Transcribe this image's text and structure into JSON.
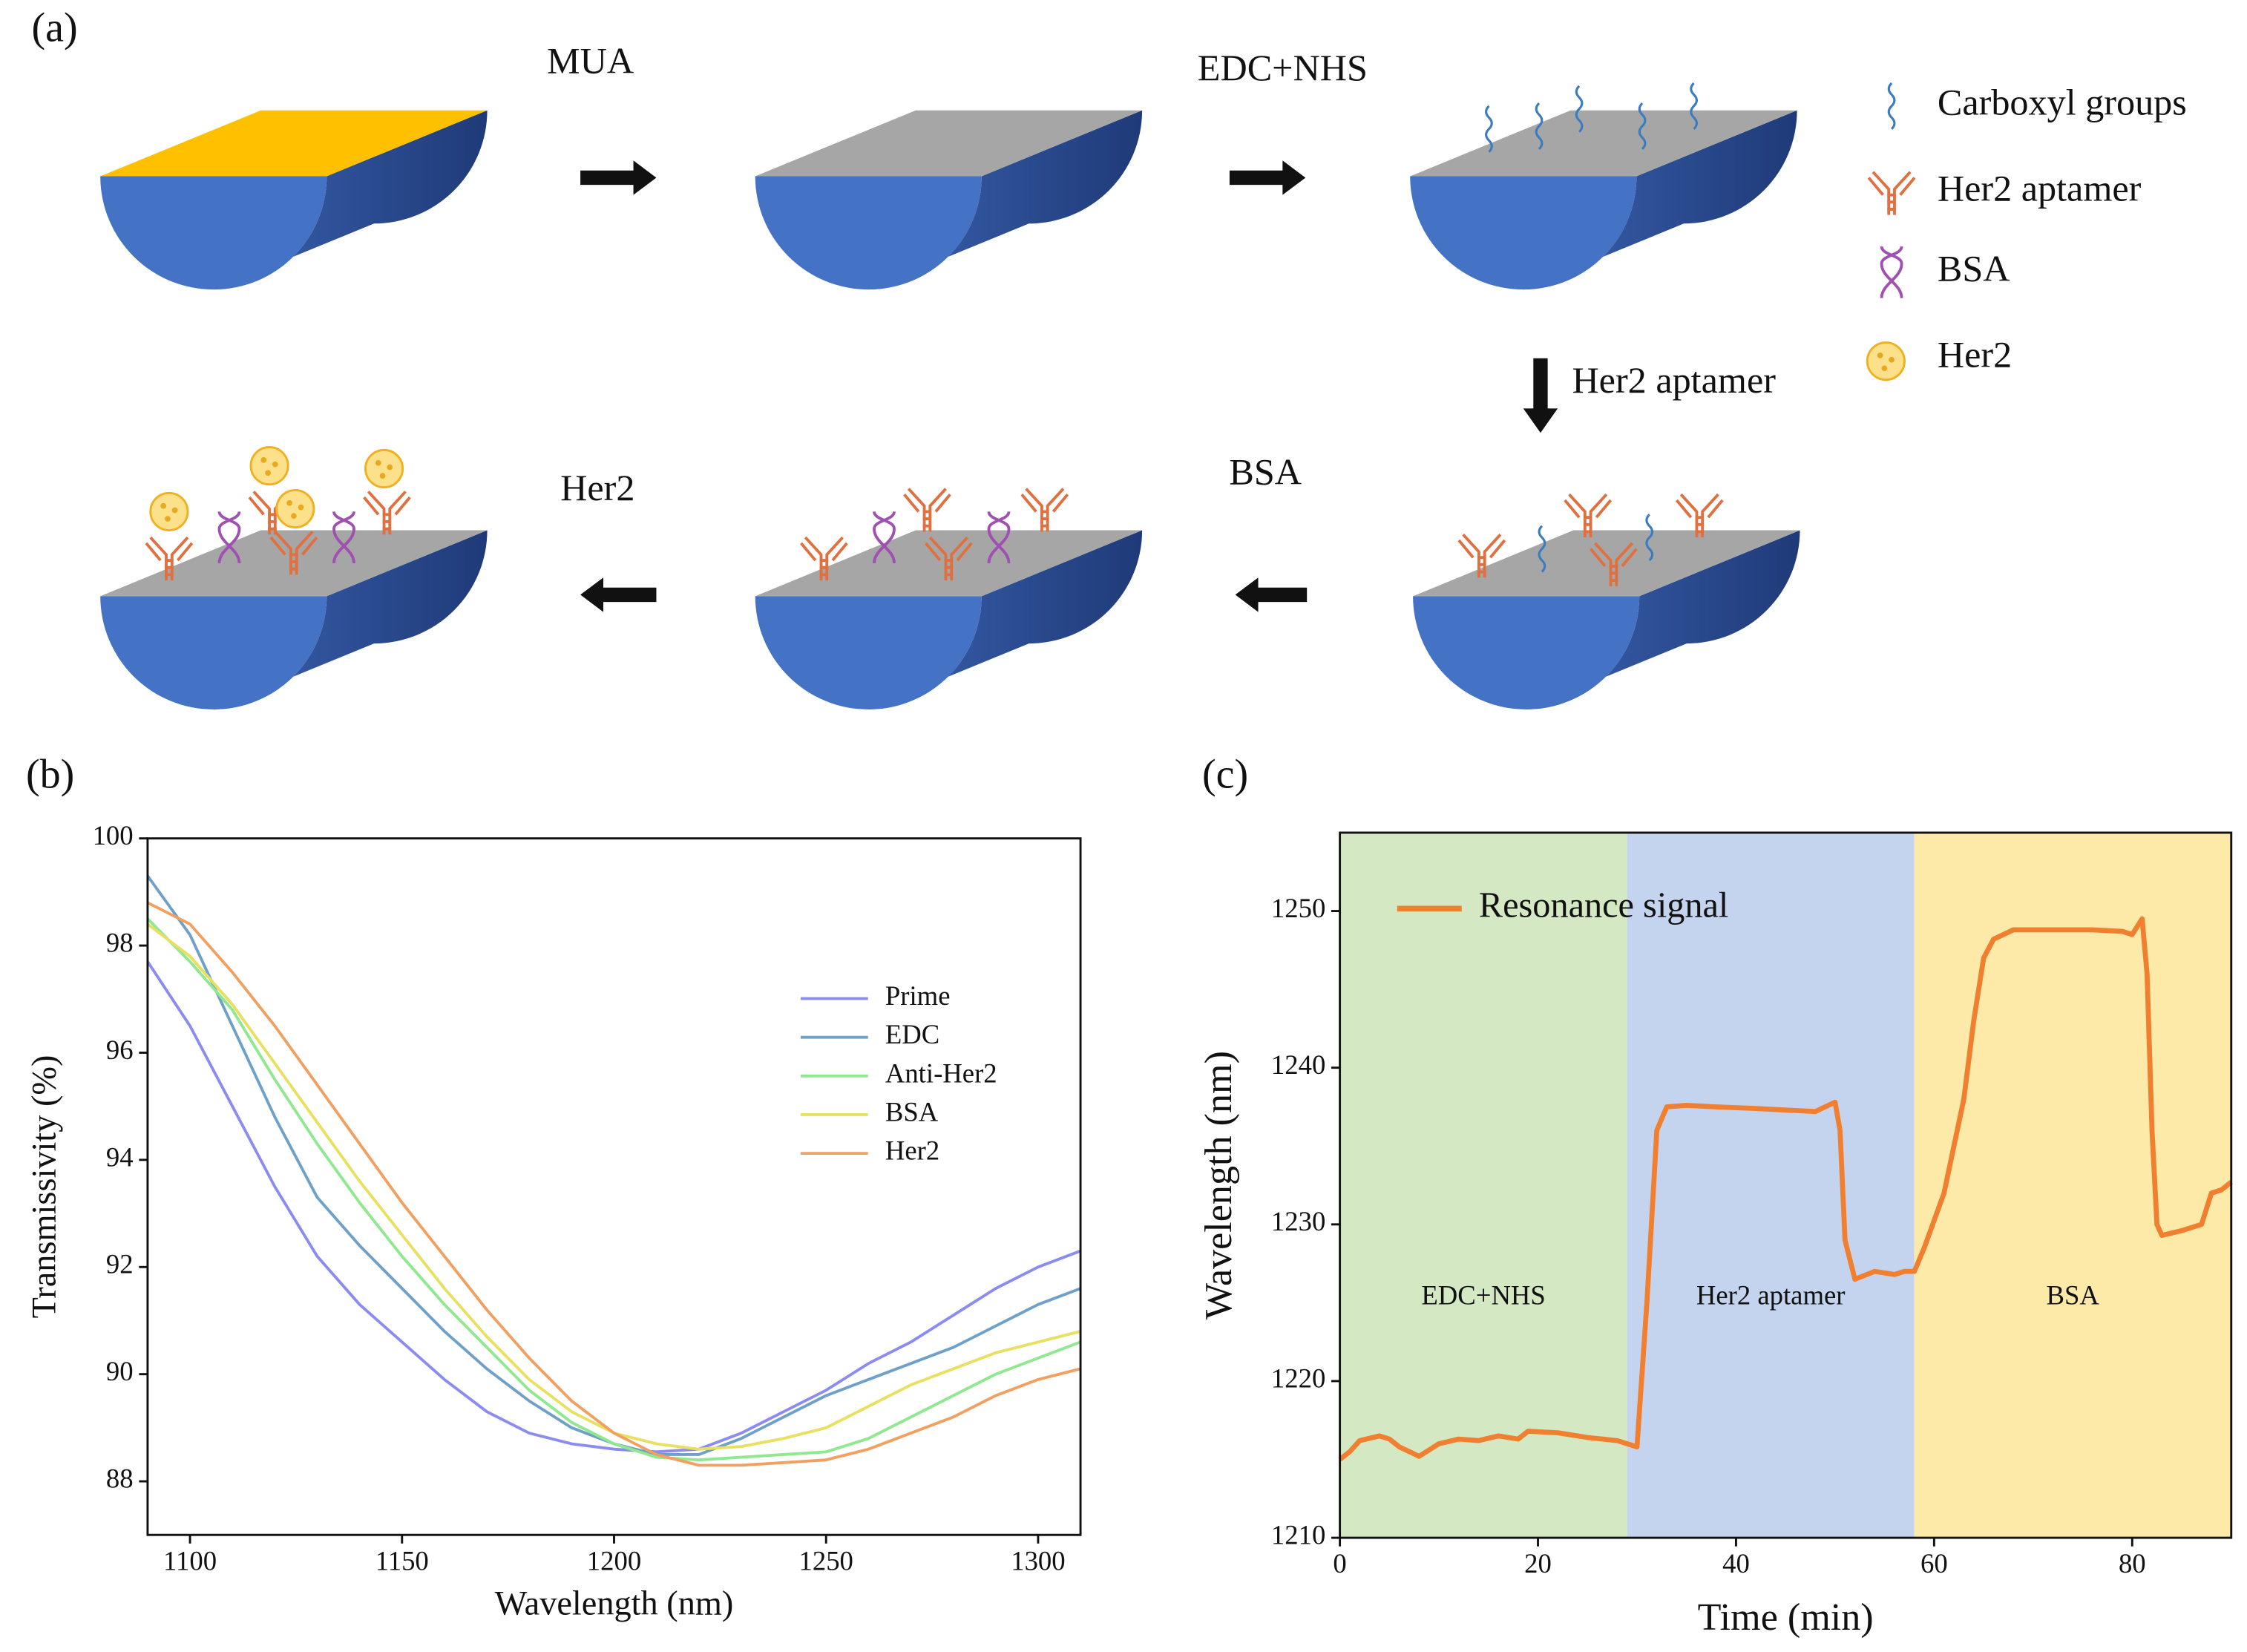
{
  "diagram": {
    "panel_label": "(a)",
    "steps": [
      "MUA",
      "EDC+NHS",
      "Her2 aptamer",
      "BSA",
      "Her2"
    ],
    "legend": [
      "Carboxyl groups",
      "Her2 aptamer",
      "BSA",
      "Her2"
    ]
  },
  "chart_data": [
    {
      "type": "line",
      "panel_label": "(b)",
      "xlabel": "Wavelength (nm)",
      "ylabel": "Transmissivity (%)",
      "x": [
        1090,
        1100,
        1110,
        1120,
        1130,
        1140,
        1150,
        1160,
        1170,
        1180,
        1190,
        1200,
        1210,
        1220,
        1230,
        1240,
        1250,
        1260,
        1270,
        1280,
        1290,
        1300,
        1310
      ],
      "series": [
        {
          "name": "Prime",
          "color": "#8c8cf0",
          "values": [
            97.7,
            96.5,
            95.0,
            93.5,
            92.2,
            91.3,
            90.6,
            89.9,
            89.3,
            88.9,
            88.7,
            88.6,
            88.55,
            88.6,
            88.9,
            89.3,
            89.7,
            90.2,
            90.6,
            91.1,
            91.6,
            92.0,
            92.3
          ]
        },
        {
          "name": "EDC",
          "color": "#6fa0c8",
          "values": [
            99.3,
            98.2,
            96.5,
            94.8,
            93.3,
            92.4,
            91.6,
            90.8,
            90.1,
            89.5,
            89.0,
            88.7,
            88.5,
            88.5,
            88.8,
            89.2,
            89.6,
            89.9,
            90.2,
            90.5,
            90.9,
            91.3,
            91.6
          ]
        },
        {
          "name": "Anti-Her2",
          "color": "#90e890",
          "values": [
            98.5,
            97.7,
            96.8,
            95.5,
            94.3,
            93.2,
            92.2,
            91.3,
            90.5,
            89.7,
            89.1,
            88.7,
            88.45,
            88.4,
            88.45,
            88.5,
            88.55,
            88.8,
            89.2,
            89.6,
            90.0,
            90.3,
            90.6
          ]
        },
        {
          "name": "BSA",
          "color": "#e8e060",
          "values": [
            98.4,
            97.8,
            96.9,
            95.8,
            94.7,
            93.6,
            92.6,
            91.6,
            90.7,
            89.9,
            89.3,
            88.9,
            88.7,
            88.6,
            88.65,
            88.8,
            89.0,
            89.4,
            89.8,
            90.1,
            90.4,
            90.6,
            90.8
          ]
        },
        {
          "name": "Her2",
          "color": "#f0a060",
          "values": [
            98.8,
            98.4,
            97.5,
            96.5,
            95.4,
            94.3,
            93.2,
            92.2,
            91.2,
            90.3,
            89.5,
            88.9,
            88.5,
            88.3,
            88.3,
            88.35,
            88.4,
            88.6,
            88.9,
            89.2,
            89.6,
            89.9,
            90.1
          ]
        }
      ],
      "xlim": [
        1090,
        1310
      ],
      "ylim": [
        87,
        100
      ],
      "xticks": [
        1100,
        1150,
        1200,
        1250,
        1300
      ],
      "yticks": [
        88,
        90,
        92,
        94,
        96,
        98,
        100
      ],
      "legend": "right"
    },
    {
      "type": "line",
      "panel_label": "(c)",
      "xlabel": "Time (min)",
      "ylabel": "Wavelength (nm)",
      "x": [
        0,
        1,
        2,
        4,
        5,
        6,
        8,
        10,
        12,
        14,
        16,
        18,
        19,
        22,
        25,
        28,
        29,
        30,
        31,
        32,
        33,
        35,
        38,
        42,
        45,
        48,
        49,
        50,
        50.5,
        51,
        52,
        54,
        56,
        57,
        58,
        59,
        61,
        63,
        64,
        65,
        66,
        68,
        72,
        76,
        79,
        80,
        81,
        81.5,
        82,
        82.5,
        83,
        85,
        87,
        88,
        89,
        90
      ],
      "series": [
        {
          "name": "Resonance signal",
          "color": "#f08030",
          "values": [
            1215,
            1215.5,
            1216.2,
            1216.5,
            1216.3,
            1215.8,
            1215.2,
            1216,
            1216.3,
            1216.2,
            1216.5,
            1216.3,
            1216.8,
            1216.7,
            1216.4,
            1216.2,
            1216,
            1215.8,
            1225,
            1236,
            1237.5,
            1237.6,
            1237.5,
            1237.4,
            1237.3,
            1237.2,
            1237.5,
            1237.8,
            1236,
            1229,
            1226.5,
            1227,
            1226.8,
            1227,
            1227,
            1228.5,
            1232,
            1238,
            1243,
            1247,
            1248.2,
            1248.8,
            1248.8,
            1248.8,
            1248.7,
            1248.5,
            1249.5,
            1246,
            1236,
            1230,
            1229.3,
            1229.6,
            1230,
            1232,
            1232.2,
            1232.7
          ]
        }
      ],
      "regions": [
        {
          "label": "EDC+NHS",
          "start": 0,
          "end": 29,
          "color": "#d5e8c4"
        },
        {
          "label": "Her2 aptamer",
          "start": 29,
          "end": 58,
          "color": "#c5d4ee"
        },
        {
          "label": "BSA",
          "start": 58,
          "end": 90,
          "color": "#fde9a8"
        }
      ],
      "xlim": [
        0,
        90
      ],
      "ylim": [
        1210,
        1255
      ],
      "xticks": [
        0,
        20,
        40,
        60,
        80
      ],
      "yticks": [
        1210,
        1220,
        1230,
        1240,
        1250
      ],
      "legend": "upper left"
    }
  ]
}
